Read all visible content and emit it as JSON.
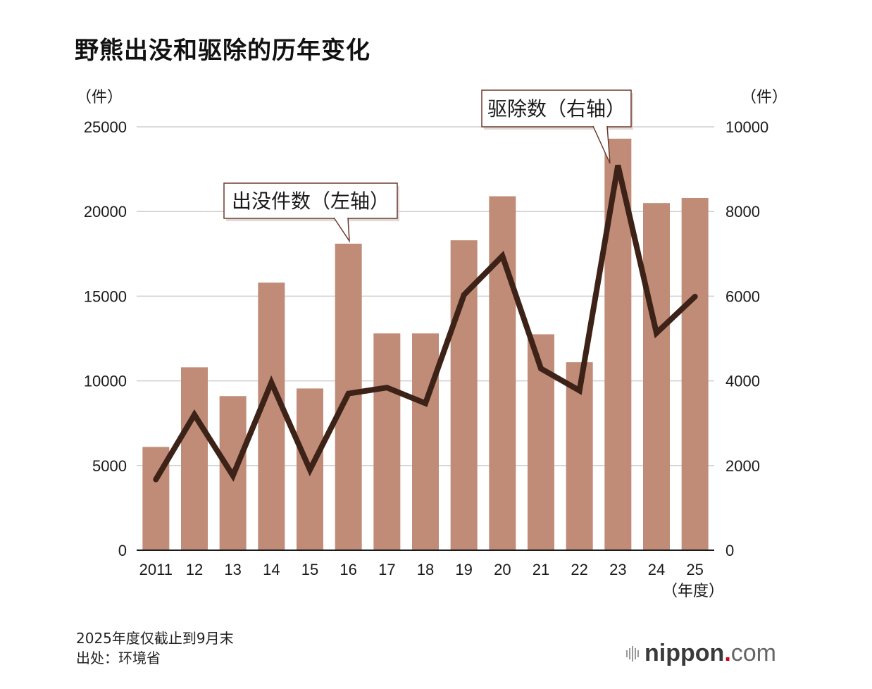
{
  "title": "野熊出没和驱除的历年变化",
  "notes": {
    "line1": "2025年度仅截止到9月末",
    "line2": "出处：环境省"
  },
  "brand": {
    "name": "nippon",
    "dot": ".",
    "suffix": "com"
  },
  "chart_data": {
    "type": "bar",
    "title": "野熊出没和驱除的历年变化",
    "categories": [
      "2011",
      "12",
      "13",
      "14",
      "15",
      "16",
      "17",
      "18",
      "19",
      "20",
      "21",
      "22",
      "23",
      "24",
      "25"
    ],
    "xlabel": "（年度）",
    "left_axis": {
      "label": "（件）",
      "ylim": [
        0,
        25000
      ],
      "ticks": [
        "0",
        "5000",
        "10000",
        "15000",
        "20000",
        "25000"
      ]
    },
    "right_axis": {
      "label": "（件）",
      "ylim": [
        0,
        10000
      ],
      "ticks": [
        "0",
        "2000",
        "4000",
        "6000",
        "8000",
        "10000"
      ]
    },
    "grid": true,
    "series": [
      {
        "name": "出没件数（左轴）",
        "type": "bar",
        "axis": "left",
        "color": "#c08c78",
        "values": [
          6100,
          10800,
          9100,
          15800,
          9550,
          18100,
          12800,
          12800,
          18300,
          20900,
          12750,
          11100,
          24300,
          20500,
          20800
        ]
      },
      {
        "name": "驱除数（右轴）",
        "type": "line",
        "axis": "right",
        "color": "#3d2218",
        "values": [
          1670,
          3200,
          1760,
          3960,
          1900,
          3700,
          3840,
          3470,
          6030,
          6950,
          4290,
          3770,
          9090,
          5130,
          5990
        ]
      }
    ],
    "annotations": [
      {
        "text": "出没件数（左轴）",
        "target_series": 0
      },
      {
        "text": "驱除数（右轴）",
        "target_series": 1
      }
    ]
  }
}
